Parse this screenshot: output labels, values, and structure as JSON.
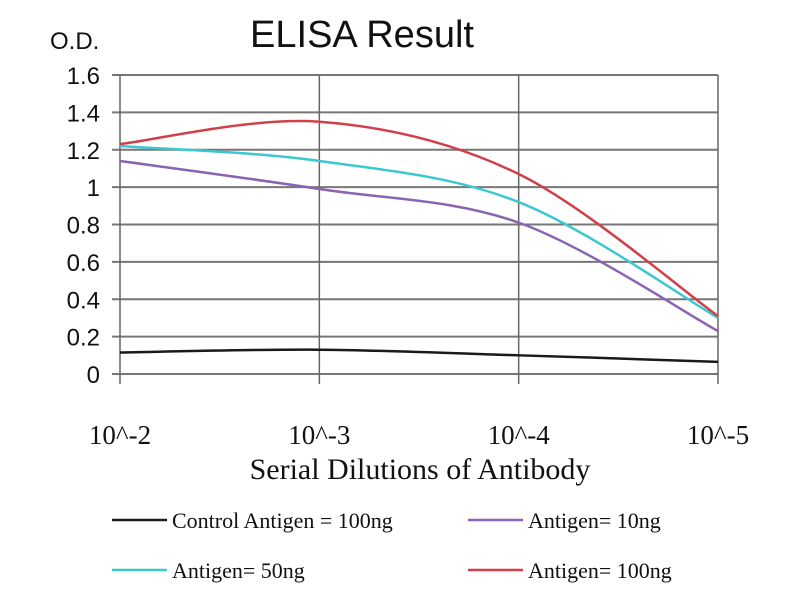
{
  "chart_data": {
    "type": "line",
    "title": "ELISA Result",
    "ylabel": "O.D.",
    "xlabel": "Serial Dilutions of Antibody",
    "x": [
      "10^-2",
      "10^-3",
      "10^-4",
      "10^-5"
    ],
    "ylim": [
      0,
      1.6
    ],
    "yticks": [
      "0",
      "0.2",
      "0.4",
      "0.6",
      "0.8",
      "1",
      "1.2",
      "1.4",
      "1.6"
    ],
    "grid": true,
    "legend_placement": "bottom",
    "series": [
      {
        "name": "Control Antigen = 100ng",
        "color": "#1a1a1a",
        "values": [
          0.115,
          0.13,
          0.1,
          0.065
        ]
      },
      {
        "name": "Antigen= 10ng",
        "color": "#8a64b0",
        "values": [
          1.14,
          0.99,
          0.81,
          0.23
        ]
      },
      {
        "name": "Antigen= 50ng",
        "color": "#3cc8d0",
        "values": [
          1.22,
          1.14,
          0.92,
          0.3
        ]
      },
      {
        "name": "Antigen= 100ng",
        "color": "#d0404a",
        "values": [
          1.23,
          1.35,
          1.07,
          0.31
        ]
      }
    ]
  }
}
